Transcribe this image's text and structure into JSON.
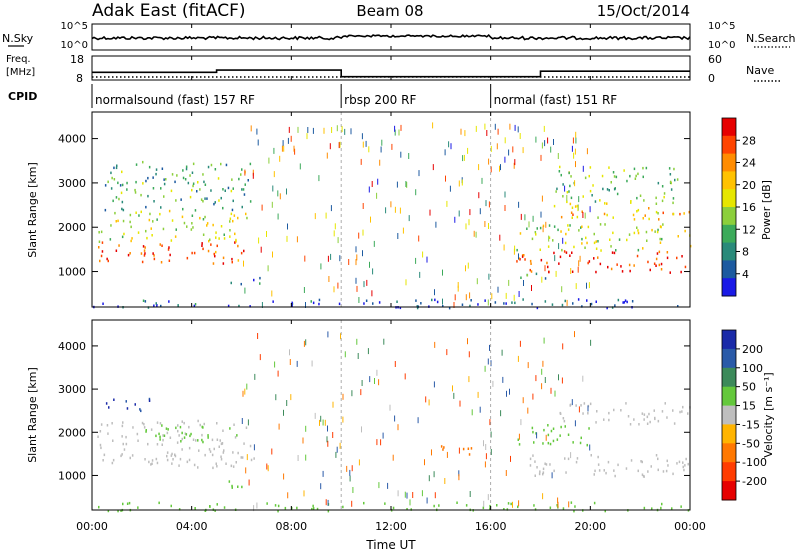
{
  "header": {
    "station": "Adak East (fitACF)",
    "beam": "Beam 08",
    "date": "15/Oct/2014"
  },
  "panels": {
    "noise": {
      "label": "N.Sky",
      "right_label": "N.Search",
      "left_ticks": [
        "10^5",
        "10^0"
      ],
      "right_ticks": [
        "10^5",
        "10^0"
      ]
    },
    "freq": {
      "label_line1": "Freq.",
      "label_line2": "[MHz]",
      "right_label": "Nave",
      "left_ticks": [
        "18",
        "8"
      ],
      "right_ticks": [
        "60",
        "0"
      ]
    },
    "cpid": {
      "label": "CPID",
      "segments": [
        {
          "label": "normalsound (fast) 157 RF",
          "start_hour": 0,
          "end_hour": 10
        },
        {
          "label": "rbsp 200 RF",
          "start_hour": 10,
          "end_hour": 16
        },
        {
          "label": "normal (fast) 151 RF",
          "start_hour": 16,
          "end_hour": 24
        }
      ]
    },
    "power": {
      "ylabel": "Slant Range [km]",
      "colorbar_label": "Power [dB]",
      "colorbar_ticks": [
        "28",
        "24",
        "20",
        "16",
        "12",
        "8",
        "4"
      ],
      "colorbar_colors": [
        "#e60000",
        "#ff4400",
        "#ff8c00",
        "#ffc200",
        "#e6e600",
        "#8ccf3c",
        "#3caa5a",
        "#2a8a7a",
        "#1c5aa0",
        "#1a1ae6"
      ]
    },
    "velocity": {
      "ylabel": "Slant Range [km]",
      "colorbar_label": "Velocity [m s⁻¹]",
      "colorbar_ticks": [
        "200",
        "100",
        "50",
        "15",
        "-15",
        "-50",
        "-100",
        "-200"
      ],
      "colorbar_colors": [
        "#1a2aa8",
        "#2a5aa8",
        "#3c8a5a",
        "#64c83c",
        "#bebebe",
        "#ffb400",
        "#ff7800",
        "#ff3c00",
        "#e60000"
      ]
    }
  },
  "x_axis": {
    "label": "Time UT",
    "ticks": [
      "00:00",
      "04:00",
      "08:00",
      "12:00",
      "16:00",
      "20:00",
      "00:00"
    ]
  },
  "y_axis_ticks": [
    "4000",
    "3000",
    "2000",
    "1000"
  ],
  "chart_data": {
    "type": "heatmap",
    "x_unit": "hours UT",
    "xlim": [
      0,
      24
    ],
    "ylim": [
      200,
      4600
    ],
    "y_ticks": [
      1000,
      2000,
      3000,
      4000
    ],
    "noise_ylim": [
      "10^0",
      "10^5"
    ],
    "freq_ylim": [
      8,
      18
    ],
    "nave_ylim": [
      0,
      60
    ],
    "frequency_MHz": [
      {
        "start": 0,
        "end": 5,
        "value": 11.5
      },
      {
        "start": 5,
        "end": 10,
        "value": 12.5
      },
      {
        "start": 10,
        "end": 18,
        "value": 9.5
      },
      {
        "start": 18,
        "end": 24,
        "value": 12.0
      }
    ],
    "power_regions_dB": [
      {
        "start": 0.2,
        "end": 6.2,
        "range_km": [
          1200,
          1700
        ],
        "value": 26
      },
      {
        "start": 0.2,
        "end": 6.2,
        "range_km": [
          1700,
          2400
        ],
        "value": 16
      },
      {
        "start": 0.5,
        "end": 6.5,
        "range_km": [
          2400,
          3500
        ],
        "value": 12
      },
      {
        "start": 5.2,
        "end": 6.8,
        "range_km": [
          700,
          900
        ],
        "value": 8
      },
      {
        "start": 17.0,
        "end": 18.5,
        "range_km": [
          800,
          1000
        ],
        "value": 10
      },
      {
        "start": 17.0,
        "end": 24,
        "range_km": [
          1000,
          1500
        ],
        "value": 27
      },
      {
        "start": 17.0,
        "end": 24,
        "range_km": [
          1500,
          2100
        ],
        "value": 16
      },
      {
        "start": 18.5,
        "end": 24,
        "range_km": [
          2200,
          2600
        ],
        "value": 20
      },
      {
        "start": 18.5,
        "end": 23.5,
        "range_km": [
          2600,
          3400
        ],
        "value": 14
      },
      {
        "start": 0,
        "end": 24,
        "range_km": [
          200,
          400
        ],
        "value": 6
      }
    ],
    "velocity_regions_ms": [
      {
        "start": 0.2,
        "end": 6.5,
        "range_km": [
          1200,
          2300
        ],
        "value": 0
      },
      {
        "start": 2.0,
        "end": 6.0,
        "range_km": [
          1800,
          2200
        ],
        "value": 30
      },
      {
        "start": 0.5,
        "end": 2.5,
        "range_km": [
          2500,
          2800
        ],
        "value": 200
      },
      {
        "start": 5.3,
        "end": 6.8,
        "range_km": [
          700,
          900
        ],
        "value": 30
      },
      {
        "start": 14.0,
        "end": 15.3,
        "range_km": [
          1500,
          1800
        ],
        "value": -60
      },
      {
        "start": 17.0,
        "end": 24,
        "range_km": [
          1000,
          1500
        ],
        "value": 0
      },
      {
        "start": 18.5,
        "end": 24,
        "range_km": [
          2200,
          2700
        ],
        "value": 0
      },
      {
        "start": 17.0,
        "end": 20.0,
        "range_km": [
          1700,
          2200
        ],
        "value": 30
      },
      {
        "start": 0,
        "end": 24,
        "range_km": [
          200,
          400
        ],
        "value": 30
      }
    ]
  }
}
